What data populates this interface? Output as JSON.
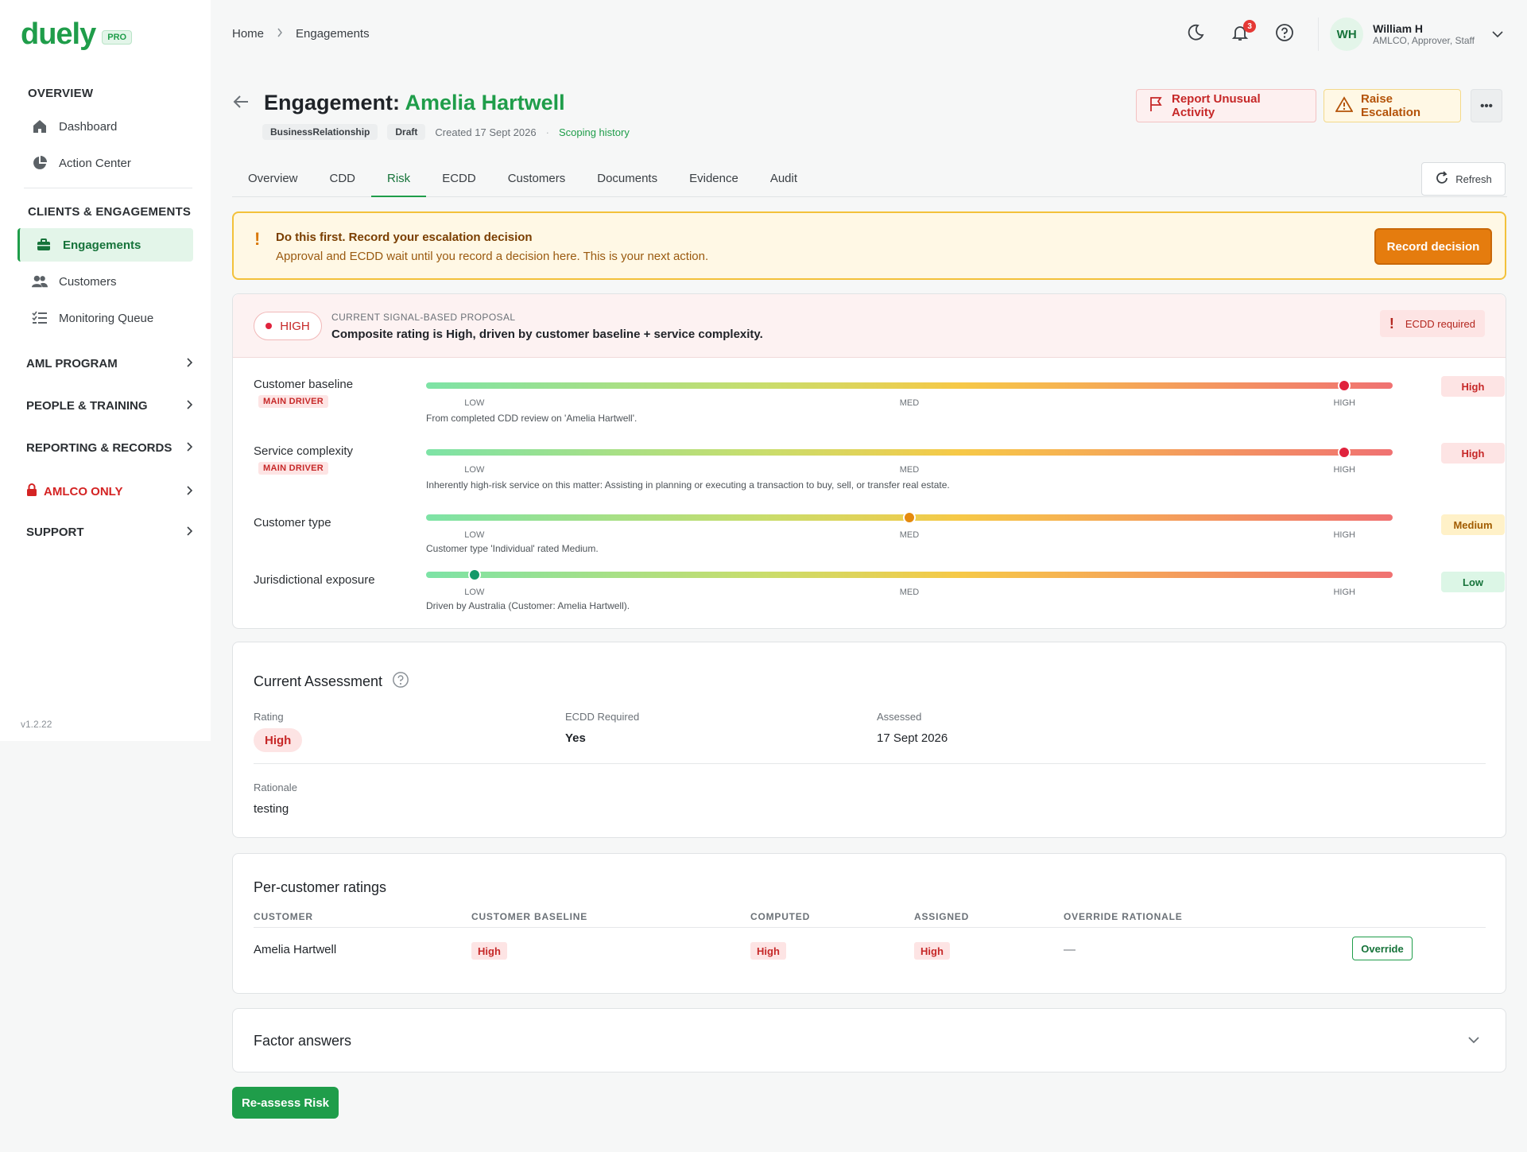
{
  "brand": {
    "name": "duely",
    "tier": "PRO",
    "version": "v1.2.22"
  },
  "sidebar": {
    "overview_label": "OVERVIEW",
    "overview_items": [
      {
        "label": "Dashboard",
        "icon": "home-icon"
      },
      {
        "label": "Action Center",
        "icon": "pie-chart-icon"
      }
    ],
    "clients_label": "CLIENTS & ENGAGEMENTS",
    "clients_items": [
      {
        "label": "Engagements",
        "icon": "briefcase-icon",
        "active": true
      },
      {
        "label": "Customers",
        "icon": "users-icon"
      },
      {
        "label": "Monitoring Queue",
        "icon": "list-check-icon"
      }
    ],
    "groups": [
      {
        "label": "AML PROGRAM"
      },
      {
        "label": "PEOPLE & TRAINING"
      },
      {
        "label": "REPORTING & RECORDS"
      },
      {
        "label": "AMLCO ONLY",
        "icon": "lock-icon",
        "color": "#d42323"
      },
      {
        "label": "SUPPORT"
      }
    ]
  },
  "breadcrumb": {
    "home": "Home",
    "current": "Engagements"
  },
  "topbar": {
    "notification_count": "3"
  },
  "user": {
    "initials": "WH",
    "name": "William H",
    "role": "AMLCO, Approver, Staff"
  },
  "header": {
    "title_prefix": "Engagement:",
    "title_name": "Amelia Hartwell",
    "type_chip": "BusinessRelationship",
    "status_chip": "Draft",
    "created": "Created 17 Sept 2026",
    "scoping_link": "Scoping history",
    "report_label": "Report Unusual Activity",
    "raise_label": "Raise Escalation",
    "more_label": "•••"
  },
  "tabs": [
    "Overview",
    "CDD",
    "Risk",
    "ECDD",
    "Customers",
    "Documents",
    "Evidence",
    "Audit"
  ],
  "active_tab": "Risk",
  "refresh_label": "Refresh",
  "alert": {
    "title": "Do this first. Record your escalation decision",
    "subtitle": "Approval and ECDD wait until you record a decision here. This is your next action.",
    "button": "Record decision"
  },
  "proposal": {
    "rating": "HIGH",
    "label": "CURRENT SIGNAL-BASED PROPOSAL",
    "text": "Composite rating is High, driven by customer baseline + service complexity.",
    "ecdd": "ECDD required"
  },
  "scale": {
    "low": "LOW",
    "med": "MED",
    "high": "HIGH"
  },
  "factors": [
    {
      "name": "Customer baseline",
      "driver": "MAIN DRIVER",
      "level": 0.95,
      "rating": "High",
      "desc": "From completed CDD review on 'Amelia Hartwell'."
    },
    {
      "name": "Service complexity",
      "driver": "MAIN DRIVER",
      "level": 0.95,
      "rating": "High",
      "desc": "Inherently high-risk service on this matter: Assisting in planning or executing a transaction to buy, sell, or transfer real estate."
    },
    {
      "name": "Customer type",
      "driver": "",
      "level": 0.5,
      "rating": "Medium",
      "desc": "Customer type 'Individual' rated Medium."
    },
    {
      "name": "Jurisdictional exposure",
      "driver": "",
      "level": 0.05,
      "rating": "Low",
      "desc": "Driven by Australia (Customer: Amelia Hartwell)."
    }
  ],
  "colors": {
    "high": "#e0233d",
    "medium": "#e58a0e",
    "low": "#15996a"
  },
  "assessment": {
    "title": "Current Assessment",
    "rating_label": "Rating",
    "rating": "High",
    "ecdd_label": "ECDD Required",
    "ecdd": "Yes",
    "assessed_label": "Assessed",
    "assessed": "17 Sept 2026",
    "rationale_label": "Rationale",
    "rationale": "testing"
  },
  "per_customer": {
    "title": "Per-customer ratings",
    "columns": [
      "CUSTOMER",
      "CUSTOMER BASELINE",
      "COMPUTED",
      "ASSIGNED",
      "OVERRIDE RATIONALE"
    ],
    "rows": [
      {
        "customer": "Amelia Hartwell",
        "baseline": "High",
        "computed": "High",
        "assigned": "High",
        "rationale": "—",
        "action": "Override"
      }
    ]
  },
  "factor_answers": {
    "title": "Factor answers"
  },
  "reassess_label": "Re-assess Risk"
}
